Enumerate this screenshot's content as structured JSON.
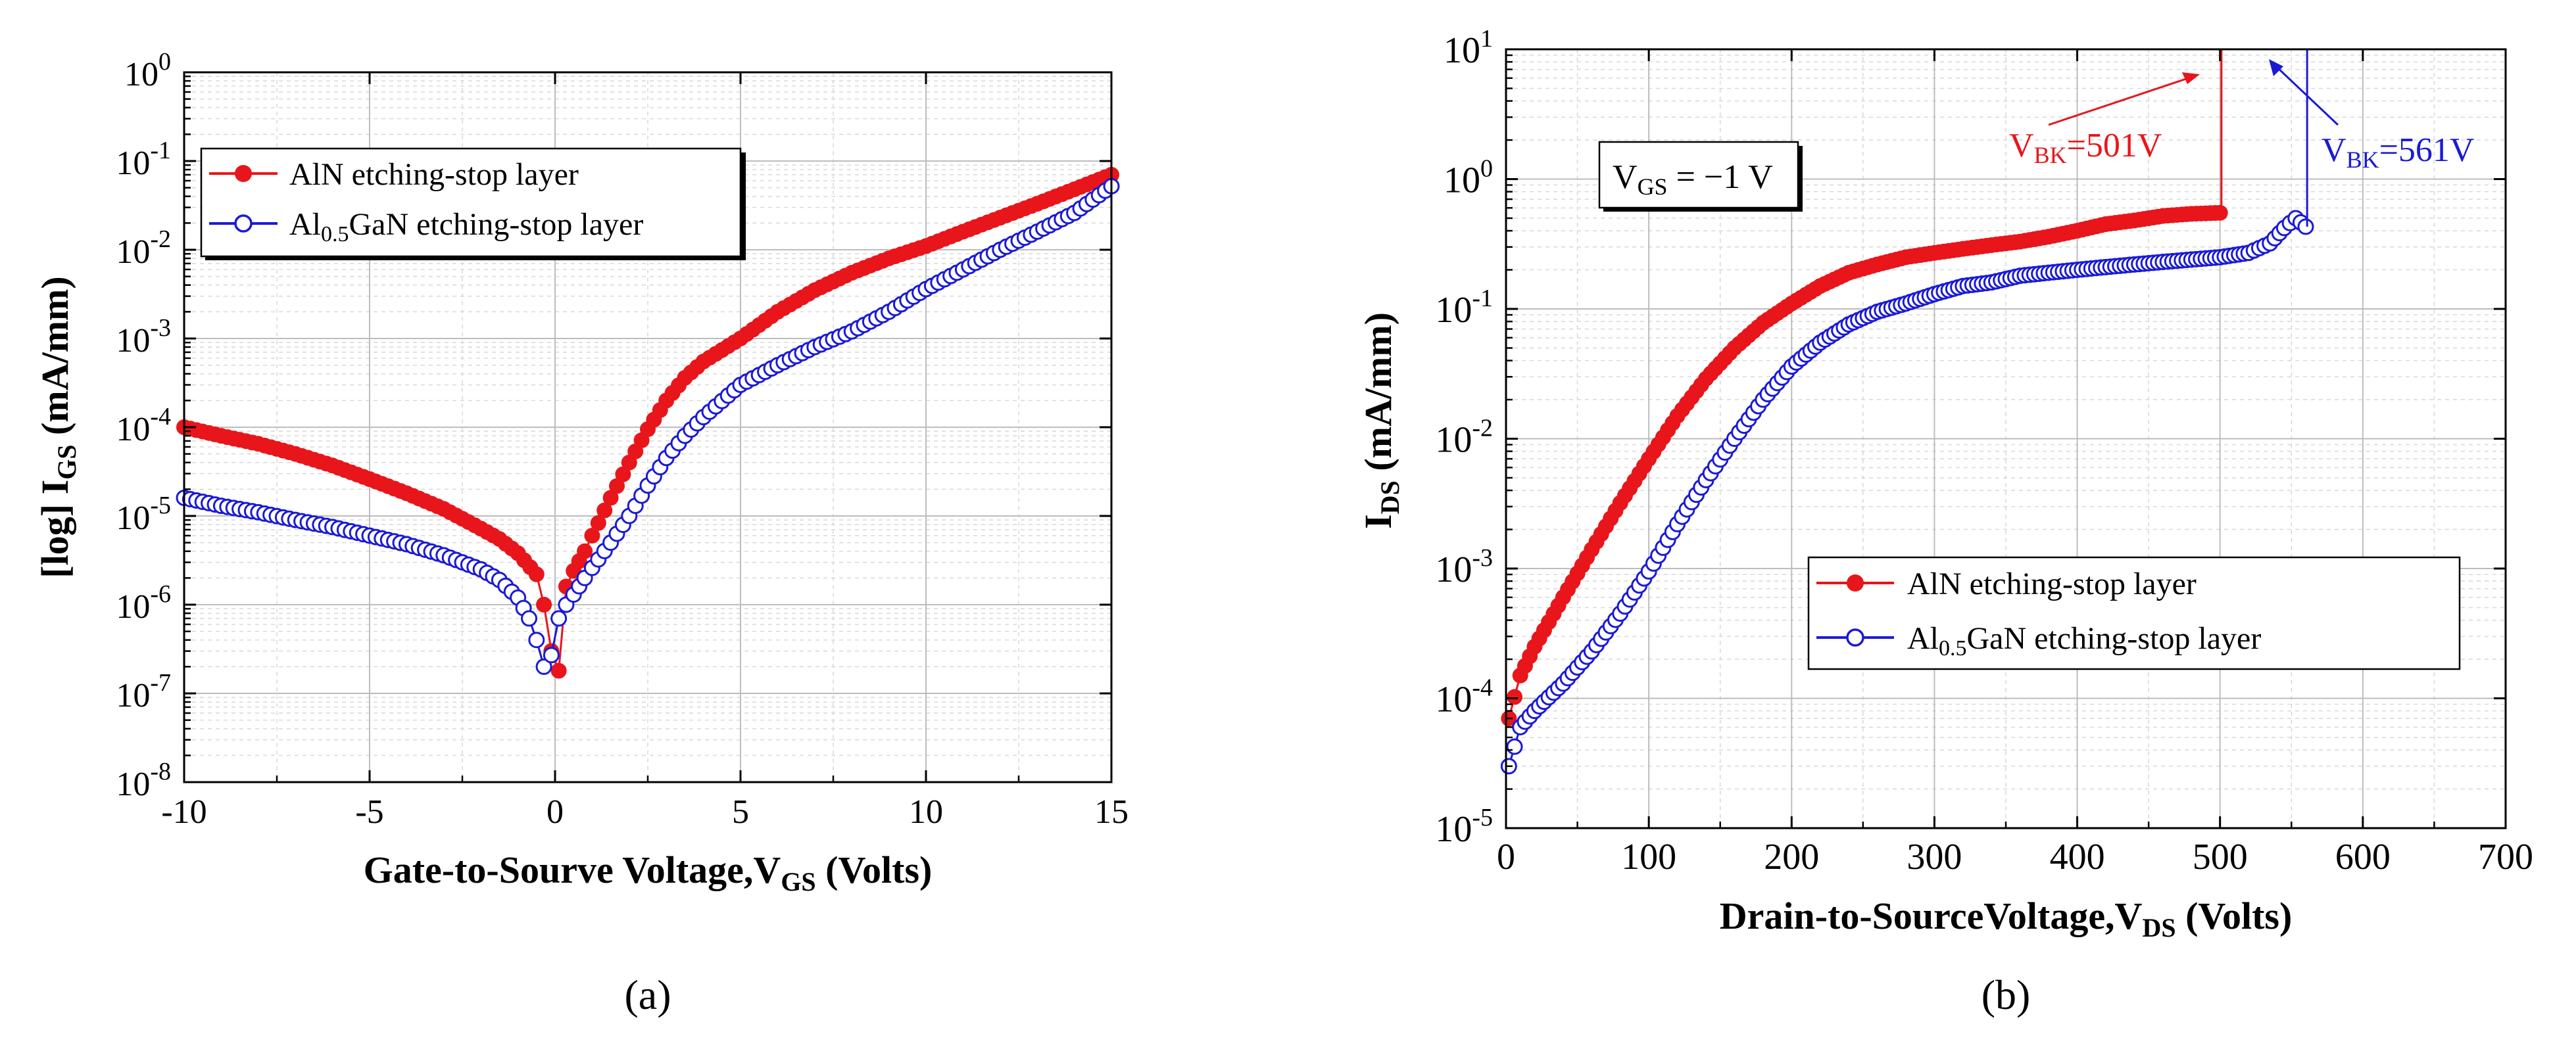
{
  "chart_data": [
    {
      "type": "scatter",
      "panel_label": "(a)",
      "xlabel": "Gate-to-Sourve Voltage,V",
      "xlabel_sub": "GS",
      "xlabel_suffix": " (Volts)",
      "ylabel_prefix": "[log] I",
      "ylabel_sub": "GS",
      "ylabel_suffix": " (mA/mm)",
      "xlim": [
        -10,
        15
      ],
      "ylim_exp": [
        -8,
        0
      ],
      "xticks": [
        -10,
        -5,
        0,
        5,
        10,
        15
      ],
      "ytick_exps": [
        -8,
        -7,
        -6,
        -5,
        -4,
        -3,
        -2,
        -1,
        0
      ],
      "grid": true,
      "legend_position": "top-left",
      "series": [
        {
          "name": "AlN etching-stop layer",
          "color": "#e8151b",
          "marker": "filled-circle",
          "x": [
            -10,
            -9,
            -8,
            -7,
            -6,
            -5,
            -4,
            -3,
            -2,
            -1.5,
            -1,
            -0.5,
            -0.3,
            -0.1,
            0.1,
            0.3,
            0.5,
            0.8,
            1,
            1.5,
            2,
            2.5,
            3,
            3.5,
            4,
            5,
            6,
            7,
            8,
            9,
            10,
            11,
            12,
            13,
            14,
            15
          ],
          "y": [
            0.0001,
            8e-05,
            6.5e-05,
            5e-05,
            3.7e-05,
            2.6e-05,
            1.8e-05,
            1.2e-05,
            7.2e-06,
            5.5e-06,
            3.8e-06,
            2.2e-06,
            1e-06,
            3e-07,
            1.8e-07,
            1.6e-06,
            2.4e-06,
            4e-06,
            6e-06,
            1.6e-05,
            4e-05,
            9.5e-05,
            0.0002,
            0.00036,
            0.00055,
            0.001,
            0.002,
            0.0035,
            0.0055,
            0.008,
            0.011,
            0.016,
            0.023,
            0.033,
            0.048,
            0.07
          ]
        },
        {
          "name": "Al0.5GaN etching-stop layer",
          "name_parts": [
            "Al",
            "0.5",
            "GaN etching-stop layer"
          ],
          "color": "#1a1ad6",
          "marker": "open-circle",
          "x": [
            -10,
            -9,
            -8,
            -7,
            -6,
            -5,
            -4,
            -3,
            -2,
            -1.5,
            -1,
            -0.7,
            -0.5,
            -0.3,
            -0.1,
            0.1,
            0.3,
            0.5,
            0.8,
            1,
            1.5,
            2,
            2.5,
            3,
            3.5,
            4,
            5,
            6,
            7,
            8,
            9,
            10,
            11,
            12,
            13,
            14,
            15
          ],
          "y": [
            1.6e-05,
            1.3e-05,
            1.1e-05,
            9e-06,
            7.5e-06,
            6e-06,
            4.8e-06,
            3.6e-06,
            2.5e-06,
            1.9e-06,
            1.2e-06,
            7e-07,
            4e-07,
            2e-07,
            2.7e-07,
            7e-07,
            1e-06,
            1.3e-06,
            2e-06,
            2.6e-06,
            5e-06,
            1e-05,
            2.2e-05,
            4.5e-05,
            8e-05,
            0.00013,
            0.0003,
            0.0005,
            0.0008,
            0.0012,
            0.002,
            0.0036,
            0.006,
            0.01,
            0.016,
            0.026,
            0.052
          ]
        }
      ]
    },
    {
      "type": "scatter",
      "panel_label": "(b)",
      "xlabel": "Drain-to-SourceVoltage,V",
      "xlabel_sub": "DS",
      "xlabel_suffix": " (Volts)",
      "ylabel_prefix": "I",
      "ylabel_sub": "DS",
      "ylabel_suffix": " (mA/mm)",
      "xlim": [
        0,
        700
      ],
      "ylim_exp": [
        -5,
        1
      ],
      "xticks": [
        0,
        100,
        200,
        300,
        400,
        500,
        600,
        700
      ],
      "ytick_exps": [
        -5,
        -4,
        -3,
        -2,
        -1,
        0,
        1
      ],
      "grid": true,
      "legend_position": "lower-right",
      "condition_box": {
        "prefix": "V",
        "sub": "GS",
        "suffix": " = −1 V"
      },
      "annotations": [
        {
          "prefix": "V",
          "sub": "BK",
          "suffix": "=501V",
          "color": "#e8151b",
          "breakdown_x": 501
        },
        {
          "prefix": "V",
          "sub": "BK",
          "suffix": "=561V",
          "color": "#1a1ad6",
          "breakdown_x": 561
        }
      ],
      "series": [
        {
          "name": "AlN etching-stop layer",
          "color": "#e8151b",
          "marker": "filled-circle",
          "x": [
            2,
            10,
            20,
            40,
            60,
            80,
            100,
            120,
            140,
            160,
            180,
            200,
            220,
            240,
            260,
            280,
            300,
            320,
            340,
            360,
            380,
            400,
            420,
            440,
            460,
            480,
            500
          ],
          "y": [
            7e-05,
            0.00015,
            0.00025,
            0.0006,
            0.0014,
            0.0032,
            0.007,
            0.015,
            0.029,
            0.05,
            0.078,
            0.11,
            0.15,
            0.19,
            0.22,
            0.25,
            0.27,
            0.29,
            0.31,
            0.33,
            0.36,
            0.4,
            0.45,
            0.48,
            0.52,
            0.54,
            0.55
          ]
        },
        {
          "name": "Al0.5GaN etching-stop layer",
          "name_parts": [
            "Al",
            "0.5",
            "GaN etching-stop layer"
          ],
          "color": "#1a1ad6",
          "marker": "open-circle",
          "x": [
            2,
            10,
            20,
            40,
            60,
            80,
            100,
            120,
            140,
            160,
            180,
            200,
            220,
            240,
            260,
            280,
            300,
            320,
            340,
            360,
            380,
            400,
            420,
            440,
            460,
            480,
            500,
            520,
            535,
            545,
            553,
            560
          ],
          "y": [
            3e-05,
            6e-05,
            8e-05,
            0.00013,
            0.00023,
            0.00045,
            0.00095,
            0.0022,
            0.0048,
            0.01,
            0.02,
            0.036,
            0.055,
            0.076,
            0.095,
            0.11,
            0.13,
            0.15,
            0.16,
            0.18,
            0.19,
            0.2,
            0.21,
            0.22,
            0.23,
            0.24,
            0.25,
            0.27,
            0.32,
            0.42,
            0.5,
            0.43
          ]
        }
      ]
    }
  ]
}
